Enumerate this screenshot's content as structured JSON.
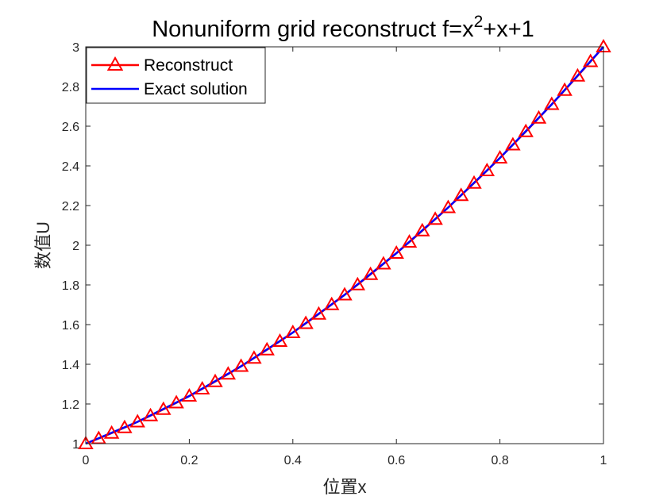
{
  "chart_data": {
    "type": "line",
    "title": "Nonuniform grid reconstruct f=x",
    "title_superscript": "2",
    "title_suffix": "+x+1",
    "xlabel": "位置x",
    "ylabel": "数值U",
    "xlim": [
      0,
      1
    ],
    "ylim": [
      1,
      3
    ],
    "xticks": [
      "0",
      "0.2",
      "0.4",
      "0.6",
      "0.8",
      "1"
    ],
    "yticks": [
      "1",
      "1.2",
      "1.4",
      "1.6",
      "1.8",
      "2",
      "2.2",
      "2.4",
      "2.6",
      "2.8",
      "3"
    ],
    "grid": false,
    "legend_position": "top-left",
    "series": [
      {
        "name": "Reconstruct",
        "color": "#ff0000",
        "marker": "triangle",
        "x": [
          0,
          0.025,
          0.05,
          0.075,
          0.1,
          0.125,
          0.15,
          0.175,
          0.2,
          0.225,
          0.25,
          0.275,
          0.3,
          0.325,
          0.35,
          0.375,
          0.4,
          0.425,
          0.45,
          0.475,
          0.5,
          0.525,
          0.55,
          0.575,
          0.6,
          0.625,
          0.65,
          0.675,
          0.7,
          0.725,
          0.75,
          0.775,
          0.8,
          0.825,
          0.85,
          0.875,
          0.9,
          0.925,
          0.95,
          0.975,
          1
        ],
        "y": [
          1.0,
          1.026,
          1.053,
          1.081,
          1.11,
          1.141,
          1.173,
          1.206,
          1.24,
          1.276,
          1.313,
          1.351,
          1.39,
          1.431,
          1.473,
          1.516,
          1.56,
          1.606,
          1.653,
          1.701,
          1.75,
          1.801,
          1.853,
          1.906,
          1.96,
          2.016,
          2.073,
          2.131,
          2.19,
          2.251,
          2.313,
          2.376,
          2.44,
          2.506,
          2.573,
          2.641,
          2.71,
          2.781,
          2.853,
          2.926,
          3.0
        ]
      },
      {
        "name": "Exact solution",
        "color": "#0000ff",
        "marker": "none",
        "x": [
          0,
          0.1,
          0.2,
          0.3,
          0.4,
          0.5,
          0.6,
          0.7,
          0.8,
          0.9,
          1
        ],
        "y": [
          1.0,
          1.11,
          1.24,
          1.39,
          1.56,
          1.75,
          1.96,
          2.19,
          2.44,
          2.71,
          3.0
        ]
      }
    ]
  }
}
